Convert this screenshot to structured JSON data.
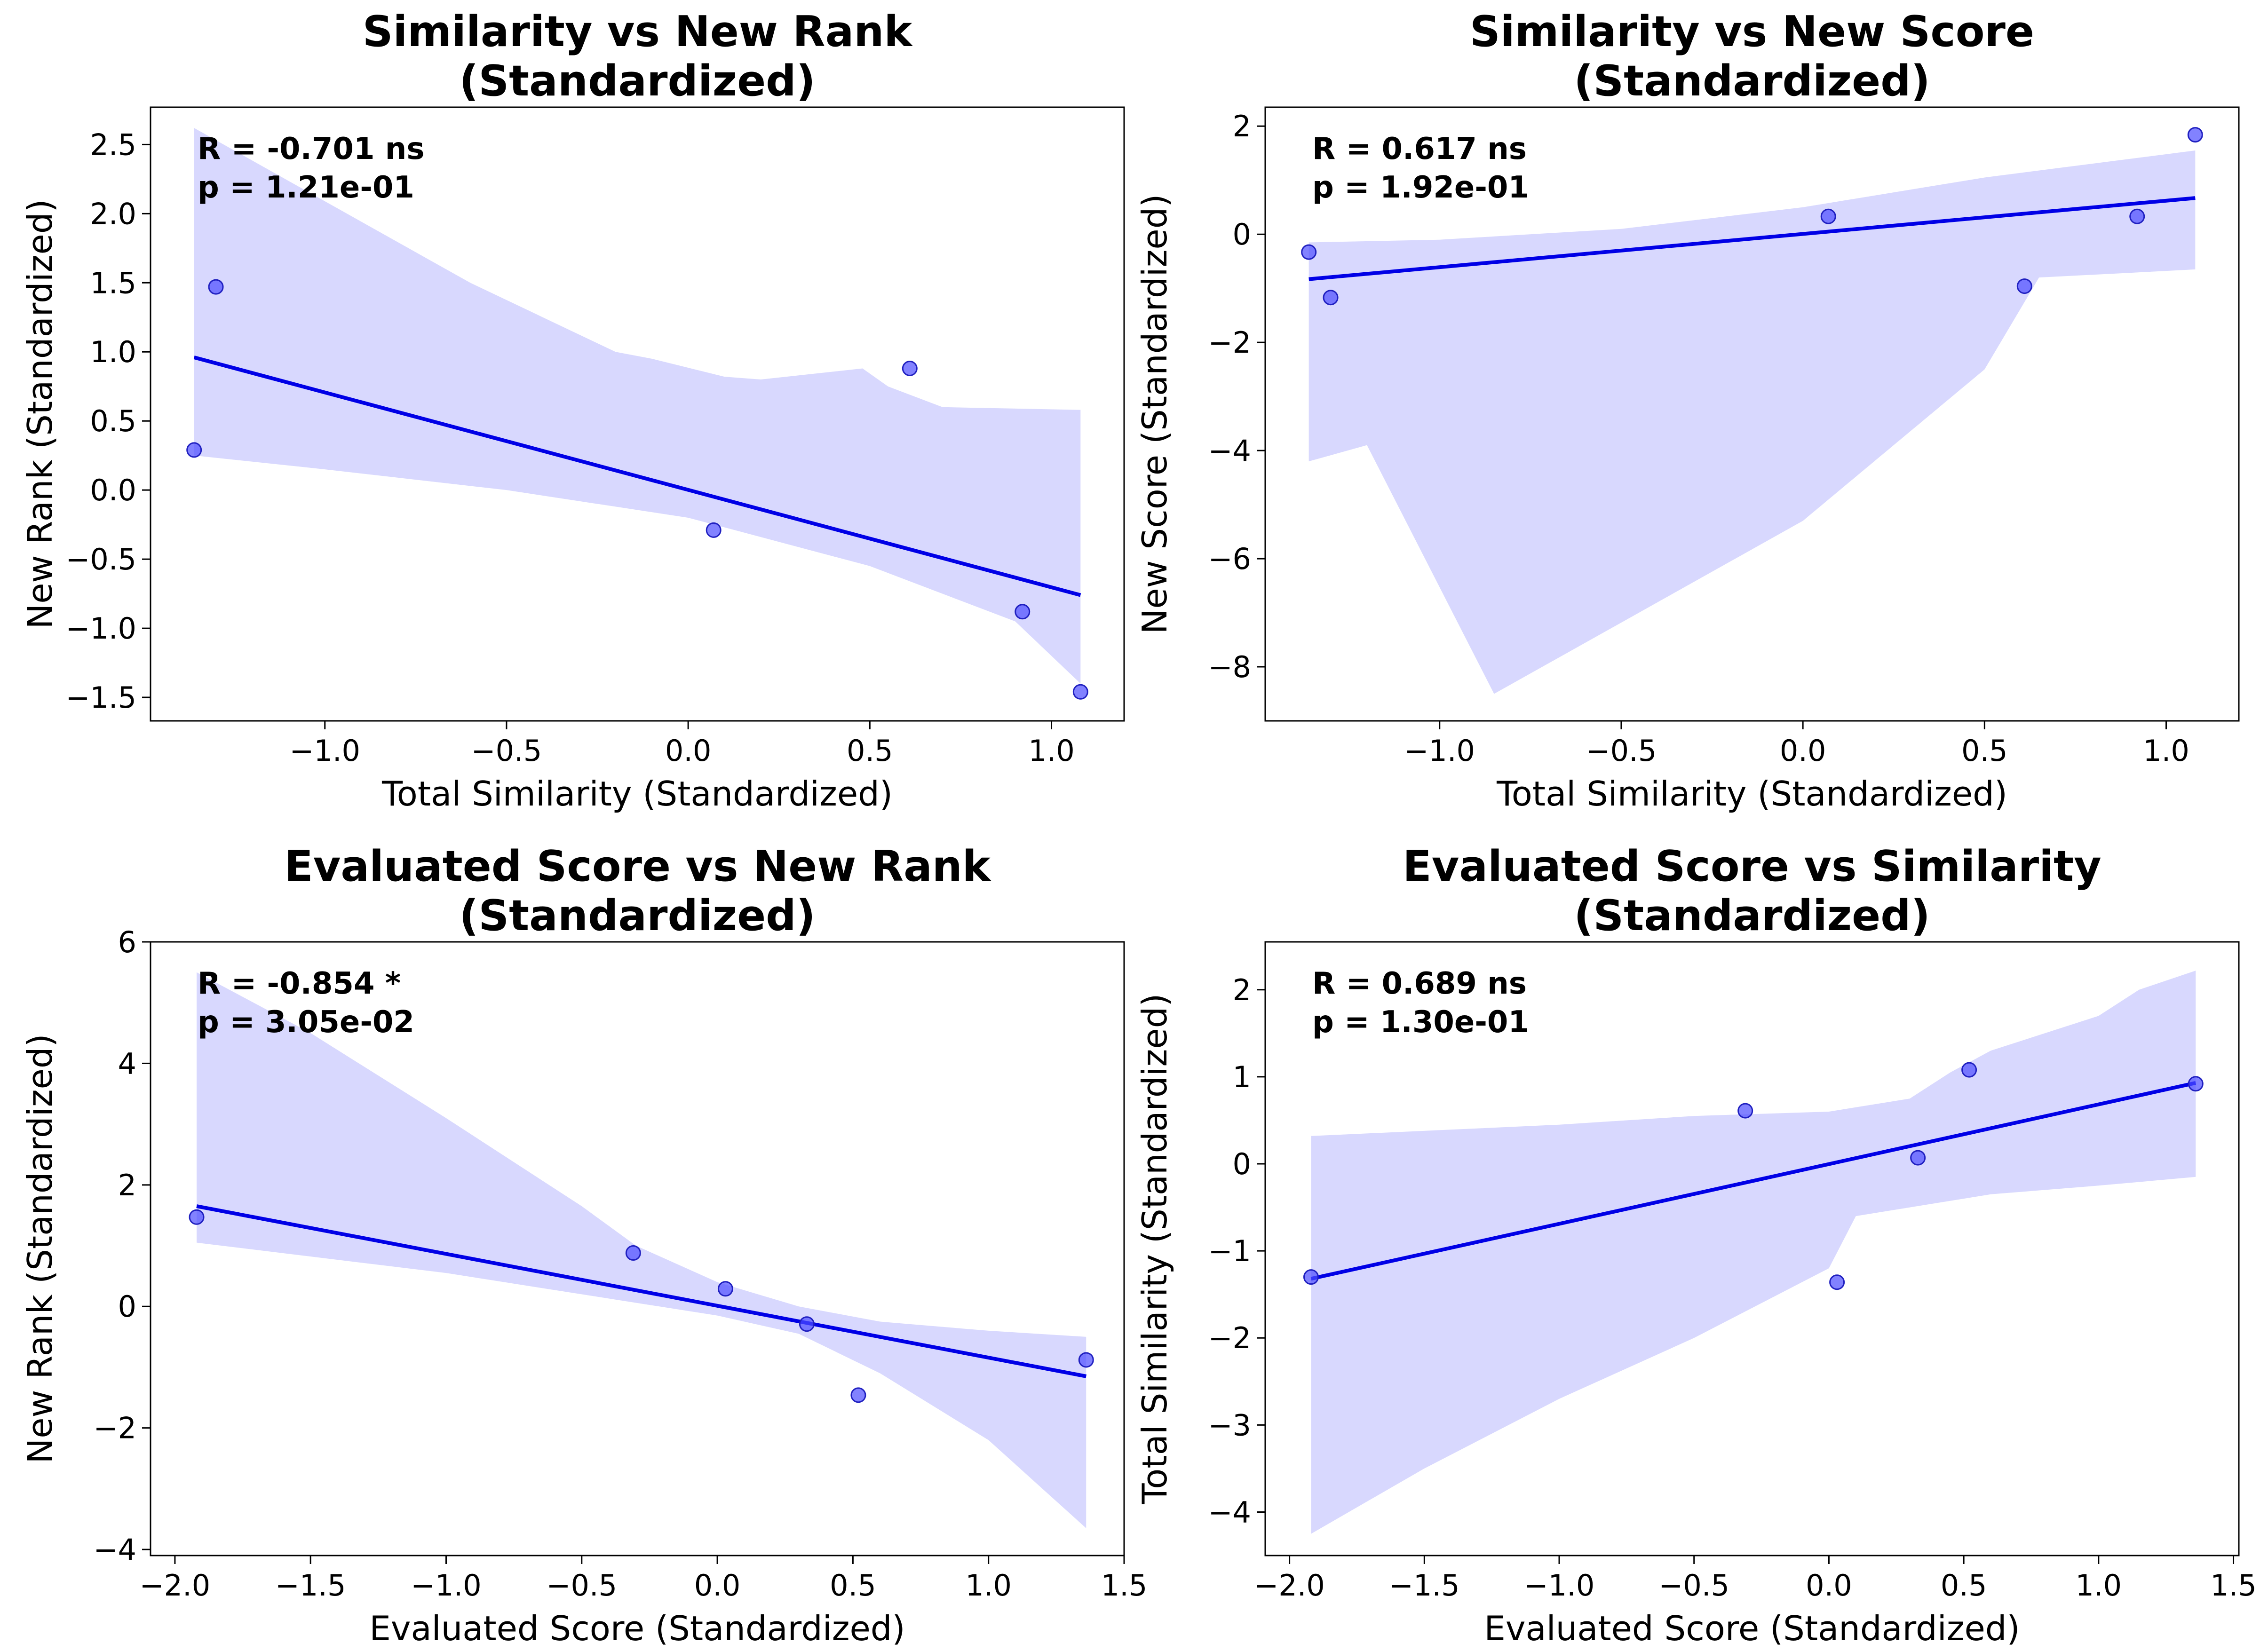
{
  "chart_data": [
    {
      "type": "scatter",
      "title": "Similarity vs New Rank\n(Standardized)",
      "xlabel": "Total Similarity (Standardized)",
      "ylabel": "New Rank (Standardized)",
      "xlim": [
        -1.48,
        1.2
      ],
      "ylim": [
        -1.67,
        2.77
      ],
      "xticks": [
        -1.0,
        -0.5,
        0.0,
        0.5,
        1.0
      ],
      "yticks": [
        -1.5,
        -1.0,
        -0.5,
        0.0,
        0.5,
        1.0,
        1.5,
        2.0,
        2.5
      ],
      "xtick_labels": [
        "−1.0",
        "−0.5",
        "0.0",
        "0.5",
        "1.0"
      ],
      "ytick_labels": [
        "−1.5",
        "−1.0",
        "−0.5",
        "0.0",
        "0.5",
        "1.0",
        "1.5",
        "2.0",
        "2.5"
      ],
      "stat_r": "R = -0.701 ns",
      "stat_p": "p = 1.21e-01",
      "colors": {
        "points": "#4d4dff",
        "line": "#0000e6",
        "band": "#d8d8fe"
      },
      "grid": false,
      "points": [
        [
          -1.36,
          0.29
        ],
        [
          -1.3,
          1.47
        ],
        [
          0.07,
          -0.29
        ],
        [
          0.61,
          0.88
        ],
        [
          0.92,
          -0.88
        ],
        [
          1.08,
          -1.46
        ]
      ],
      "fit": [
        [
          -1.36,
          0.96
        ],
        [
          1.08,
          -0.76
        ]
      ],
      "band_upper": [
        [
          -1.36,
          2.62
        ],
        [
          -0.6,
          1.5
        ],
        [
          -0.2,
          1.0
        ],
        [
          -0.1,
          0.95
        ],
        [
          0.1,
          0.82
        ],
        [
          0.2,
          0.8
        ],
        [
          0.48,
          0.88
        ],
        [
          0.55,
          0.75
        ],
        [
          0.7,
          0.6
        ],
        [
          1.08,
          0.58
        ]
      ],
      "band_lower": [
        [
          -1.36,
          0.25
        ],
        [
          -1.0,
          0.15
        ],
        [
          -0.5,
          0.0
        ],
        [
          0.0,
          -0.2
        ],
        [
          0.5,
          -0.55
        ],
        [
          0.9,
          -0.95
        ],
        [
          1.08,
          -1.4
        ]
      ]
    },
    {
      "type": "scatter",
      "title": "Similarity vs New Score\n(Standardized)",
      "xlabel": "Total Similarity (Standardized)",
      "ylabel": "New Score (Standardized)",
      "xlim": [
        -1.48,
        1.2
      ],
      "ylim": [
        -9.0,
        2.35
      ],
      "xticks": [
        -1.0,
        -0.5,
        0.0,
        0.5,
        1.0
      ],
      "yticks": [
        -8,
        -6,
        -4,
        -2,
        0,
        2
      ],
      "xtick_labels": [
        "−1.0",
        "−0.5",
        "0.0",
        "0.5",
        "1.0"
      ],
      "ytick_labels": [
        "−8",
        "−6",
        "−4",
        "−2",
        "0",
        "2"
      ],
      "stat_r": "R = 0.617 ns",
      "stat_p": "p = 1.92e-01",
      "colors": {
        "points": "#4d4dff",
        "line": "#0000e6",
        "band": "#d8d8fe"
      },
      "grid": false,
      "points": [
        [
          -1.36,
          -0.33
        ],
        [
          -1.3,
          -1.17
        ],
        [
          0.07,
          0.33
        ],
        [
          0.61,
          -0.96
        ],
        [
          0.92,
          0.33
        ],
        [
          1.08,
          1.84
        ]
      ],
      "fit": [
        [
          -1.36,
          -0.83
        ],
        [
          1.08,
          0.67
        ]
      ],
      "band_upper": [
        [
          -1.36,
          -0.15
        ],
        [
          -1.0,
          -0.1
        ],
        [
          -0.5,
          0.1
        ],
        [
          0.0,
          0.5
        ],
        [
          0.5,
          1.05
        ],
        [
          1.08,
          1.55
        ]
      ],
      "band_lower": [
        [
          -1.36,
          -4.2
        ],
        [
          -1.2,
          -3.9
        ],
        [
          -0.85,
          -8.5
        ],
        [
          0.0,
          -5.3
        ],
        [
          0.5,
          -2.5
        ],
        [
          0.65,
          -0.8
        ],
        [
          1.08,
          -0.65
        ]
      ]
    },
    {
      "type": "scatter",
      "title": "Evaluated Score vs New Rank\n(Standardized)",
      "xlabel": "Evaluated Score (Standardized)",
      "ylabel": "New Rank (Standardized)",
      "xlim": [
        -2.09,
        1.5
      ],
      "ylim": [
        -4.1,
        6.0
      ],
      "xticks": [
        -2.0,
        -1.5,
        -1.0,
        -0.5,
        0.0,
        0.5,
        1.0,
        1.5
      ],
      "yticks": [
        -4,
        -2,
        0,
        2,
        4,
        6
      ],
      "xtick_labels": [
        "−2.0",
        "−1.5",
        "−1.0",
        "−0.5",
        "0.0",
        "0.5",
        "1.0",
        "1.5"
      ],
      "ytick_labels": [
        "−4",
        "−2",
        "0",
        "2",
        "4",
        "6"
      ],
      "stat_r": "R = -0.854 *",
      "stat_p": "p = 3.05e-02",
      "colors": {
        "points": "#4d4dff",
        "line": "#0000e6",
        "band": "#d8d8fe"
      },
      "grid": false,
      "points": [
        [
          -1.92,
          1.47
        ],
        [
          -0.31,
          0.88
        ],
        [
          0.03,
          0.29
        ],
        [
          0.33,
          -0.29
        ],
        [
          0.52,
          -1.46
        ],
        [
          1.36,
          -0.88
        ]
      ],
      "fit": [
        [
          -1.92,
          1.65
        ],
        [
          1.36,
          -1.15
        ]
      ],
      "band_upper": [
        [
          -1.92,
          5.5
        ],
        [
          -1.5,
          4.5
        ],
        [
          -1.0,
          3.1
        ],
        [
          -0.5,
          1.65
        ],
        [
          -0.3,
          1.0
        ],
        [
          0.0,
          0.4
        ],
        [
          0.3,
          0.0
        ],
        [
          0.6,
          -0.25
        ],
        [
          1.0,
          -0.4
        ],
        [
          1.36,
          -0.5
        ]
      ],
      "band_lower": [
        [
          -1.92,
          1.05
        ],
        [
          -1.0,
          0.55
        ],
        [
          -0.5,
          0.2
        ],
        [
          0.0,
          -0.15
        ],
        [
          0.3,
          -0.45
        ],
        [
          0.6,
          -1.1
        ],
        [
          1.0,
          -2.2
        ],
        [
          1.36,
          -3.65
        ]
      ]
    },
    {
      "type": "scatter",
      "title": "Evaluated Score vs Similarity\n(Standardized)",
      "xlabel": "Evaluated Score (Standardized)",
      "ylabel": "Total Similarity (Standardized)",
      "xlim": [
        -2.09,
        1.52
      ],
      "ylim": [
        -4.5,
        2.55
      ],
      "xticks": [
        -2.0,
        -1.5,
        -1.0,
        -0.5,
        0.0,
        0.5,
        1.0,
        1.5
      ],
      "yticks": [
        -4,
        -3,
        -2,
        -1,
        0,
        1,
        2
      ],
      "xtick_labels": [
        "−2.0",
        "−1.5",
        "−1.0",
        "−0.5",
        "0.0",
        "0.5",
        "1.0",
        "1.5"
      ],
      "ytick_labels": [
        "−4",
        "−3",
        "−2",
        "−1",
        "0",
        "1",
        "2"
      ],
      "stat_r": "R = 0.689 ns",
      "stat_p": "p = 1.30e-01",
      "colors": {
        "points": "#4d4dff",
        "line": "#0000e6",
        "band": "#d8d8fe"
      },
      "grid": false,
      "points": [
        [
          -1.92,
          -1.3
        ],
        [
          -0.31,
          0.61
        ],
        [
          0.03,
          -1.36
        ],
        [
          0.33,
          0.07
        ],
        [
          0.52,
          1.08
        ],
        [
          1.36,
          0.92
        ]
      ],
      "fit": [
        [
          -1.92,
          -1.32
        ],
        [
          1.36,
          0.93
        ]
      ],
      "band_upper": [
        [
          -1.92,
          0.32
        ],
        [
          -1.0,
          0.45
        ],
        [
          -0.5,
          0.55
        ],
        [
          0.0,
          0.6
        ],
        [
          0.3,
          0.75
        ],
        [
          0.45,
          1.05
        ],
        [
          0.6,
          1.3
        ],
        [
          1.0,
          1.7
        ],
        [
          1.15,
          2.0
        ],
        [
          1.36,
          2.22
        ]
      ],
      "band_lower": [
        [
          -1.92,
          -4.25
        ],
        [
          -1.5,
          -3.5
        ],
        [
          -1.0,
          -2.7
        ],
        [
          -0.5,
          -2.0
        ],
        [
          0.0,
          -1.2
        ],
        [
          0.1,
          -0.6
        ],
        [
          0.3,
          -0.5
        ],
        [
          0.6,
          -0.35
        ],
        [
          1.0,
          -0.25
        ],
        [
          1.36,
          -0.15
        ]
      ]
    }
  ]
}
